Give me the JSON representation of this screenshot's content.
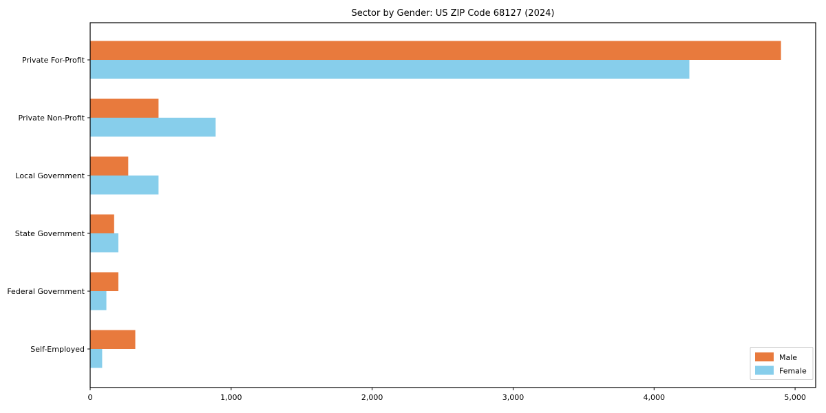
{
  "chart_data": {
    "type": "bar",
    "orientation": "horizontal",
    "title": "Sector by Gender: US ZIP Code 68127 (2024)",
    "xlabel": "",
    "ylabel": "",
    "categories": [
      "Private For-Profit",
      "Private Non-Profit",
      "Local Government",
      "State Government",
      "Federal Government",
      "Self-Employed"
    ],
    "series": [
      {
        "name": "Male",
        "color": "#E87A3D",
        "values": [
          4900,
          485,
          270,
          170,
          200,
          320
        ]
      },
      {
        "name": "Female",
        "color": "#87CEEB",
        "values": [
          4250,
          890,
          485,
          200,
          115,
          85
        ]
      }
    ],
    "xlim": [
      0,
      5146
    ],
    "xticks": [
      0,
      1000,
      2000,
      3000,
      4000,
      5000
    ],
    "xtick_labels": [
      "0",
      "1,000",
      "2,000",
      "3,000",
      "4,000",
      "5,000"
    ],
    "grid": false,
    "legend": {
      "position": "lower right",
      "entries": [
        {
          "label": "Male",
          "color": "#E87A3D"
        },
        {
          "label": "Female",
          "color": "#87CEEB"
        }
      ]
    },
    "colors": {
      "axis": "#000000",
      "text": "#000000",
      "legend_border": "#cccccc",
      "background": "#ffffff"
    }
  }
}
